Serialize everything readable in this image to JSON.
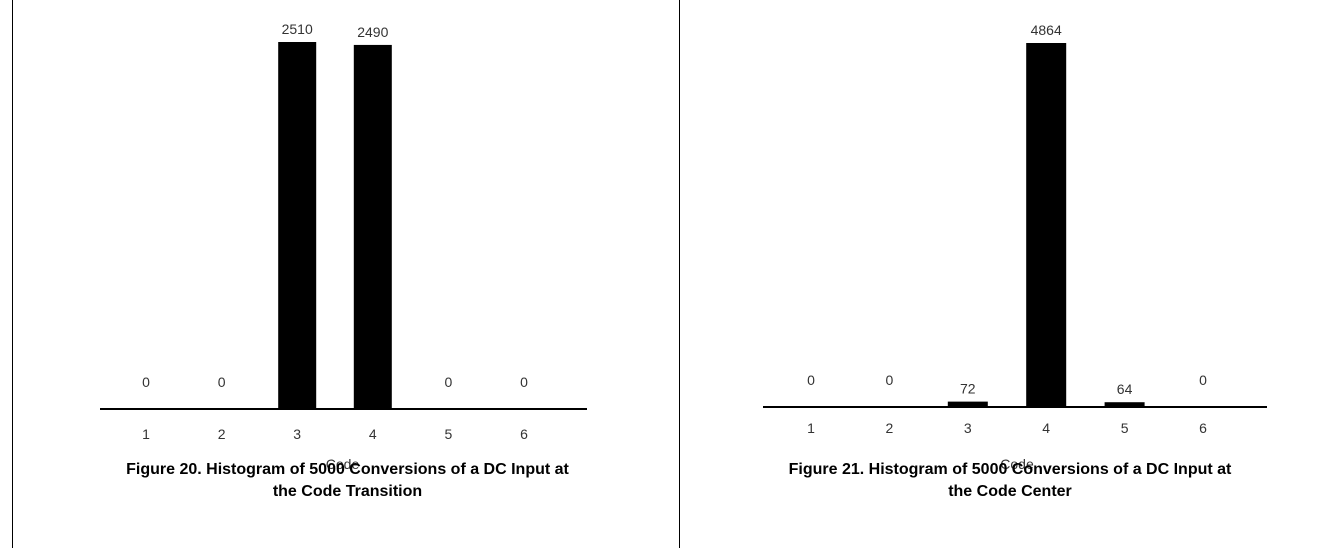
{
  "chart_data": [
    {
      "type": "bar",
      "categories": [
        "1",
        "2",
        "3",
        "4",
        "5",
        "6"
      ],
      "values": [
        0,
        0,
        2510,
        2490,
        0,
        0
      ],
      "data_labels": [
        "0",
        "0",
        "2510",
        "2490",
        "0",
        "0"
      ],
      "xlabel": "Code",
      "ylabel": "",
      "ylim": [
        0,
        2510
      ],
      "grid": false,
      "caption_line1": "Figure 20. Histogram of 5000 Conversions of a DC Input at",
      "caption_line2": "the Code Transition"
    },
    {
      "type": "bar",
      "categories": [
        "1",
        "2",
        "3",
        "4",
        "5",
        "6"
      ],
      "values": [
        0,
        0,
        72,
        4864,
        64,
        0
      ],
      "data_labels": [
        "0",
        "0",
        "72",
        "4864",
        "64",
        "0"
      ],
      "xlabel": "Code",
      "ylabel": "",
      "ylim": [
        0,
        4864
      ],
      "grid": false,
      "caption_line1": "Figure 21. Histogram of 5000 Conversions of a DC Input at",
      "caption_line2": "the Code Center"
    }
  ],
  "colors": {
    "bar": "#000000",
    "axis": "#000000",
    "label_text": "#333333",
    "frame": "#000000"
  }
}
